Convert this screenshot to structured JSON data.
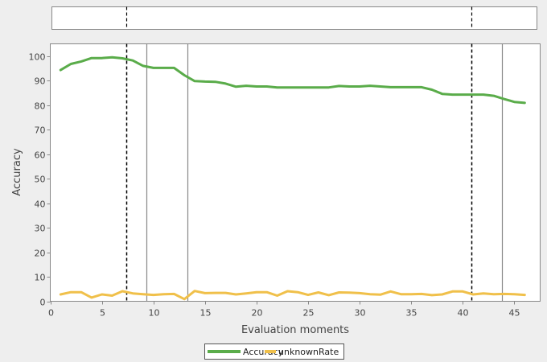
{
  "chart_data": {
    "type": "line",
    "xlabel": "Evaluation moments",
    "ylabel": "Accuracy",
    "xlim": [
      0,
      47.5
    ],
    "ylim": [
      0,
      105
    ],
    "xticks": [
      0,
      5,
      10,
      15,
      20,
      25,
      30,
      35,
      40,
      45
    ],
    "yticks": [
      0,
      10,
      20,
      30,
      40,
      50,
      60,
      70,
      80,
      90,
      100
    ],
    "grid": false,
    "legend_position": "bottom-center",
    "x": [
      1,
      2,
      3,
      4,
      5,
      6,
      7,
      8,
      9,
      10,
      11,
      12,
      13,
      14,
      15,
      16,
      17,
      18,
      19,
      20,
      21,
      22,
      23,
      24,
      25,
      26,
      27,
      28,
      29,
      30,
      31,
      32,
      33,
      34,
      35,
      36,
      37,
      38,
      39,
      40,
      41,
      42,
      43,
      44,
      45,
      46
    ],
    "series": [
      {
        "name": "Accuracy",
        "color": "#5aac4a",
        "values": [
          94.3,
          96.8,
          97.8,
          99.2,
          99.2,
          99.5,
          99.1,
          98.2,
          96.0,
          95.2,
          95.2,
          95.2,
          92.2,
          89.8,
          89.6,
          89.5,
          88.8,
          87.5,
          87.9,
          87.6,
          87.6,
          87.2,
          87.2,
          87.2,
          87.2,
          87.2,
          87.2,
          87.8,
          87.6,
          87.6,
          87.9,
          87.6,
          87.3,
          87.3,
          87.3,
          87.3,
          86.3,
          84.6,
          84.3,
          84.3,
          84.3,
          84.3,
          83.8,
          82.5,
          81.3,
          80.9
        ]
      },
      {
        "name": "unknownRate",
        "color": "#f0c04a",
        "values": [
          2.8,
          3.7,
          3.7,
          1.5,
          2.8,
          2.3,
          4.1,
          3.2,
          2.9,
          2.6,
          2.9,
          3.0,
          0.9,
          4.2,
          3.3,
          3.4,
          3.4,
          2.8,
          3.2,
          3.7,
          3.7,
          2.3,
          4.1,
          3.7,
          2.6,
          3.6,
          2.5,
          3.6,
          3.5,
          3.3,
          2.9,
          2.7,
          4.0,
          2.9,
          2.9,
          3.0,
          2.5,
          2.8,
          4.0,
          4.0,
          2.8,
          3.2,
          2.9,
          3.0,
          2.9,
          2.6
        ]
      }
    ],
    "vertical_markers": [
      {
        "x": 7.4,
        "style": "dashed",
        "color": "#000000"
      },
      {
        "x": 9.3,
        "style": "solid",
        "color": "#888888"
      },
      {
        "x": 13.3,
        "style": "solid",
        "color": "#888888"
      },
      {
        "x": 40.8,
        "style": "dashed",
        "color": "#000000"
      },
      {
        "x": 43.8,
        "style": "solid",
        "color": "#888888"
      }
    ],
    "overview_markers": [
      {
        "x": 7.4,
        "style": "dashed",
        "color": "#000000"
      },
      {
        "x": 40.8,
        "style": "dashed",
        "color": "#000000"
      }
    ]
  }
}
